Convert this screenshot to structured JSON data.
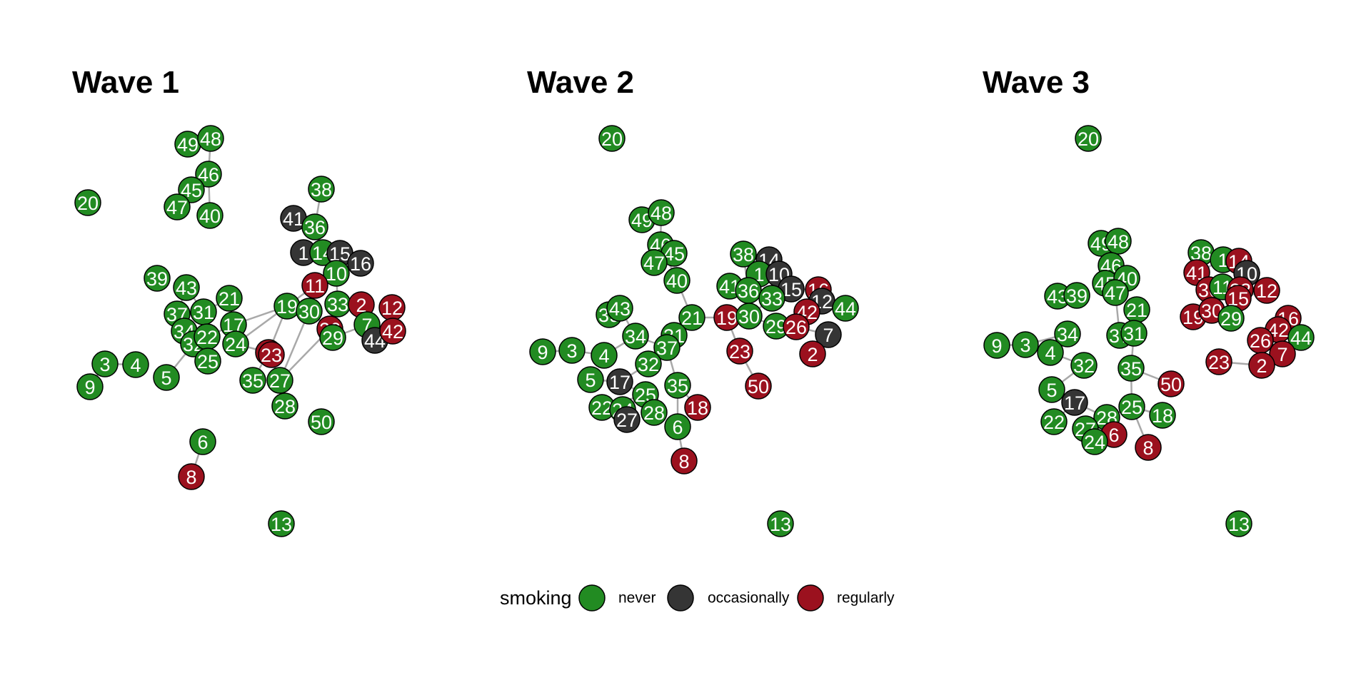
{
  "colors": {
    "never": "#228B22",
    "occasionally": "#353535",
    "regularly": "#9B111E",
    "edge": "#A9A9A9"
  },
  "legend": {
    "title": "smoking",
    "items": [
      {
        "key": "never",
        "label": "never"
      },
      {
        "key": "occasionally",
        "label": "occasionally"
      },
      {
        "key": "regularly",
        "label": "regularly"
      }
    ]
  },
  "panels": [
    {
      "title": "Wave 1",
      "nodes": [
        {
          "id": "49",
          "g": "never"
        },
        {
          "id": "48",
          "g": "never"
        },
        {
          "id": "46",
          "g": "never"
        },
        {
          "id": "45",
          "g": "never"
        },
        {
          "id": "47",
          "g": "never"
        },
        {
          "id": "40",
          "g": "never"
        },
        {
          "id": "20",
          "g": "never"
        },
        {
          "id": "38",
          "g": "never"
        },
        {
          "id": "41",
          "g": "occasionally"
        },
        {
          "id": "36",
          "g": "never"
        },
        {
          "id": "1",
          "g": "occasionally"
        },
        {
          "id": "14",
          "g": "never"
        },
        {
          "id": "15",
          "g": "occasionally"
        },
        {
          "id": "16",
          "g": "occasionally"
        },
        {
          "id": "10",
          "g": "never"
        },
        {
          "id": "11",
          "g": "regularly"
        },
        {
          "id": "39",
          "g": "never"
        },
        {
          "id": "43",
          "g": "never"
        },
        {
          "id": "21",
          "g": "never"
        },
        {
          "id": "37",
          "g": "never"
        },
        {
          "id": "31",
          "g": "never"
        },
        {
          "id": "17",
          "g": "never"
        },
        {
          "id": "34",
          "g": "never"
        },
        {
          "id": "32",
          "g": "never"
        },
        {
          "id": "22",
          "g": "never"
        },
        {
          "id": "24",
          "g": "never"
        },
        {
          "id": "25",
          "g": "never"
        },
        {
          "id": "19",
          "g": "never"
        },
        {
          "id": "30",
          "g": "never"
        },
        {
          "id": "33",
          "g": "never"
        },
        {
          "id": "2",
          "g": "regularly"
        },
        {
          "id": "12",
          "g": "regularly"
        },
        {
          "id": "26",
          "g": "regularly"
        },
        {
          "id": "29",
          "g": "never"
        },
        {
          "id": "7",
          "g": "never"
        },
        {
          "id": "44",
          "g": "occasionally"
        },
        {
          "id": "42",
          "g": "regularly"
        },
        {
          "id": "18",
          "g": "regularly"
        },
        {
          "id": "23",
          "g": "regularly"
        },
        {
          "id": "3",
          "g": "never"
        },
        {
          "id": "4",
          "g": "never"
        },
        {
          "id": "9",
          "g": "never"
        },
        {
          "id": "5",
          "g": "never"
        },
        {
          "id": "35",
          "g": "never"
        },
        {
          "id": "27",
          "g": "never"
        },
        {
          "id": "28",
          "g": "never"
        },
        {
          "id": "50",
          "g": "never"
        },
        {
          "id": "6",
          "g": "never"
        },
        {
          "id": "8",
          "g": "regularly"
        },
        {
          "id": "13",
          "g": "never"
        }
      ],
      "edges": [
        [
          "49",
          "48"
        ],
        [
          "48",
          "46"
        ],
        [
          "46",
          "45"
        ],
        [
          "45",
          "47"
        ],
        [
          "46",
          "40"
        ],
        [
          "38",
          "36"
        ],
        [
          "41",
          "36"
        ],
        [
          "36",
          "14"
        ],
        [
          "1",
          "14"
        ],
        [
          "14",
          "15"
        ],
        [
          "15",
          "16"
        ],
        [
          "14",
          "10"
        ],
        [
          "10",
          "11"
        ],
        [
          "11",
          "19"
        ],
        [
          "10",
          "33"
        ],
        [
          "33",
          "2"
        ],
        [
          "2",
          "7"
        ],
        [
          "7",
          "44"
        ],
        [
          "44",
          "42"
        ],
        [
          "12",
          "42"
        ],
        [
          "30",
          "26"
        ],
        [
          "26",
          "29"
        ],
        [
          "29",
          "7"
        ],
        [
          "33",
          "26"
        ],
        [
          "19",
          "30"
        ],
        [
          "19",
          "17"
        ],
        [
          "17",
          "24"
        ],
        [
          "21",
          "17"
        ],
        [
          "21",
          "31"
        ],
        [
          "31",
          "37"
        ],
        [
          "37",
          "34"
        ],
        [
          "34",
          "22"
        ],
        [
          "22",
          "32"
        ],
        [
          "32",
          "25"
        ],
        [
          "43",
          "31"
        ],
        [
          "43",
          "37"
        ],
        [
          "24",
          "18"
        ],
        [
          "19",
          "18"
        ],
        [
          "18",
          "35"
        ],
        [
          "30",
          "27"
        ],
        [
          "26",
          "27"
        ],
        [
          "27",
          "28"
        ],
        [
          "27",
          "18"
        ],
        [
          "3",
          "4"
        ],
        [
          "3",
          "9"
        ],
        [
          "32",
          "5"
        ],
        [
          "6",
          "8"
        ],
        [
          "17",
          "22"
        ],
        [
          "19",
          "24"
        ]
      ]
    },
    {
      "title": "Wave 2",
      "nodes": [
        {
          "id": "20",
          "g": "never"
        },
        {
          "id": "49",
          "g": "never"
        },
        {
          "id": "48",
          "g": "never"
        },
        {
          "id": "46",
          "g": "never"
        },
        {
          "id": "45",
          "g": "never"
        },
        {
          "id": "47",
          "g": "never"
        },
        {
          "id": "40",
          "g": "never"
        },
        {
          "id": "38",
          "g": "never"
        },
        {
          "id": "14",
          "g": "occasionally"
        },
        {
          "id": "1",
          "g": "never"
        },
        {
          "id": "10",
          "g": "occasionally"
        },
        {
          "id": "41",
          "g": "never"
        },
        {
          "id": "36",
          "g": "never"
        },
        {
          "id": "15",
          "g": "occasionally"
        },
        {
          "id": "16",
          "g": "regularly"
        },
        {
          "id": "33",
          "g": "never"
        },
        {
          "id": "12",
          "g": "occasionally"
        },
        {
          "id": "42",
          "g": "regularly"
        },
        {
          "id": "44",
          "g": "never"
        },
        {
          "id": "19",
          "g": "regularly"
        },
        {
          "id": "30",
          "g": "never"
        },
        {
          "id": "29",
          "g": "never"
        },
        {
          "id": "26",
          "g": "regularly"
        },
        {
          "id": "7",
          "g": "occasionally"
        },
        {
          "id": "2",
          "g": "regularly"
        },
        {
          "id": "23",
          "g": "regularly"
        },
        {
          "id": "50",
          "g": "regularly"
        },
        {
          "id": "21",
          "g": "never"
        },
        {
          "id": "39",
          "g": "never"
        },
        {
          "id": "43",
          "g": "never"
        },
        {
          "id": "34",
          "g": "never"
        },
        {
          "id": "31",
          "g": "never"
        },
        {
          "id": "37",
          "g": "never"
        },
        {
          "id": "9",
          "g": "never"
        },
        {
          "id": "3",
          "g": "never"
        },
        {
          "id": "4",
          "g": "never"
        },
        {
          "id": "32",
          "g": "never"
        },
        {
          "id": "5",
          "g": "never"
        },
        {
          "id": "17",
          "g": "occasionally"
        },
        {
          "id": "25",
          "g": "never"
        },
        {
          "id": "35",
          "g": "never"
        },
        {
          "id": "22",
          "g": "never"
        },
        {
          "id": "24",
          "g": "never"
        },
        {
          "id": "27",
          "g": "occasionally"
        },
        {
          "id": "28",
          "g": "never"
        },
        {
          "id": "18",
          "g": "regularly"
        },
        {
          "id": "6",
          "g": "never"
        },
        {
          "id": "8",
          "g": "regularly"
        },
        {
          "id": "13",
          "g": "never"
        }
      ],
      "edges": [
        [
          "49",
          "48"
        ],
        [
          "48",
          "46"
        ],
        [
          "46",
          "45"
        ],
        [
          "45",
          "47"
        ],
        [
          "46",
          "40"
        ],
        [
          "40",
          "21"
        ],
        [
          "21",
          "19"
        ],
        [
          "21",
          "31"
        ],
        [
          "31",
          "37"
        ],
        [
          "37",
          "34"
        ],
        [
          "34",
          "43"
        ],
        [
          "39",
          "43"
        ],
        [
          "34",
          "4"
        ],
        [
          "9",
          "3"
        ],
        [
          "3",
          "4"
        ],
        [
          "37",
          "32"
        ],
        [
          "32",
          "17"
        ],
        [
          "17",
          "5"
        ],
        [
          "17",
          "25"
        ],
        [
          "25",
          "22"
        ],
        [
          "25",
          "24"
        ],
        [
          "24",
          "27"
        ],
        [
          "25",
          "28"
        ],
        [
          "37",
          "35"
        ],
        [
          "35",
          "6"
        ],
        [
          "35",
          "18"
        ],
        [
          "6",
          "8"
        ],
        [
          "19",
          "23"
        ],
        [
          "23",
          "50"
        ],
        [
          "19",
          "30"
        ],
        [
          "38",
          "36"
        ],
        [
          "36",
          "41"
        ],
        [
          "36",
          "1"
        ],
        [
          "1",
          "14"
        ],
        [
          "14",
          "10"
        ],
        [
          "10",
          "15"
        ],
        [
          "15",
          "16"
        ],
        [
          "16",
          "42"
        ],
        [
          "42",
          "26"
        ],
        [
          "26",
          "29"
        ],
        [
          "29",
          "30"
        ],
        [
          "33",
          "36"
        ],
        [
          "12",
          "42"
        ],
        [
          "44",
          "12"
        ],
        [
          "26",
          "7"
        ],
        [
          "7",
          "2"
        ],
        [
          "30",
          "33"
        ],
        [
          "22",
          "24"
        ]
      ]
    },
    {
      "title": "Wave 3",
      "nodes": [
        {
          "id": "20",
          "g": "never"
        },
        {
          "id": "49",
          "g": "never"
        },
        {
          "id": "48",
          "g": "never"
        },
        {
          "id": "46",
          "g": "never"
        },
        {
          "id": "45",
          "g": "never"
        },
        {
          "id": "40",
          "g": "never"
        },
        {
          "id": "47",
          "g": "never"
        },
        {
          "id": "43",
          "g": "never"
        },
        {
          "id": "39",
          "g": "never"
        },
        {
          "id": "21",
          "g": "never"
        },
        {
          "id": "37",
          "g": "never"
        },
        {
          "id": "31",
          "g": "never"
        },
        {
          "id": "35",
          "g": "never"
        },
        {
          "id": "50",
          "g": "regularly"
        },
        {
          "id": "9",
          "g": "never"
        },
        {
          "id": "3",
          "g": "never"
        },
        {
          "id": "34",
          "g": "never"
        },
        {
          "id": "4",
          "g": "never"
        },
        {
          "id": "32",
          "g": "never"
        },
        {
          "id": "5",
          "g": "never"
        },
        {
          "id": "17",
          "g": "occasionally"
        },
        {
          "id": "22",
          "g": "never"
        },
        {
          "id": "28",
          "g": "never"
        },
        {
          "id": "25",
          "g": "never"
        },
        {
          "id": "18",
          "g": "never"
        },
        {
          "id": "27",
          "g": "never"
        },
        {
          "id": "6",
          "g": "regularly"
        },
        {
          "id": "24",
          "g": "never"
        },
        {
          "id": "8",
          "g": "regularly"
        },
        {
          "id": "38",
          "g": "never"
        },
        {
          "id": "1",
          "g": "never"
        },
        {
          "id": "14",
          "g": "regularly"
        },
        {
          "id": "10",
          "g": "occasionally"
        },
        {
          "id": "41",
          "g": "regularly"
        },
        {
          "id": "36",
          "g": "regularly"
        },
        {
          "id": "11",
          "g": "never"
        },
        {
          "id": "33",
          "g": "regularly"
        },
        {
          "id": "15",
          "g": "regularly"
        },
        {
          "id": "12",
          "g": "regularly"
        },
        {
          "id": "19",
          "g": "regularly"
        },
        {
          "id": "30",
          "g": "regularly"
        },
        {
          "id": "29",
          "g": "never"
        },
        {
          "id": "16",
          "g": "regularly"
        },
        {
          "id": "42",
          "g": "regularly"
        },
        {
          "id": "26",
          "g": "regularly"
        },
        {
          "id": "44",
          "g": "never"
        },
        {
          "id": "7",
          "g": "regularly"
        },
        {
          "id": "23",
          "g": "regularly"
        },
        {
          "id": "2",
          "g": "regularly"
        },
        {
          "id": "13",
          "g": "never"
        }
      ],
      "edges": [
        [
          "49",
          "48"
        ],
        [
          "48",
          "46"
        ],
        [
          "46",
          "45"
        ],
        [
          "46",
          "40"
        ],
        [
          "45",
          "47"
        ],
        [
          "40",
          "47"
        ],
        [
          "43",
          "39"
        ],
        [
          "47",
          "37"
        ],
        [
          "37",
          "31"
        ],
        [
          "21",
          "31"
        ],
        [
          "31",
          "35"
        ],
        [
          "35",
          "50"
        ],
        [
          "35",
          "25"
        ],
        [
          "25",
          "18"
        ],
        [
          "25",
          "28"
        ],
        [
          "28",
          "27"
        ],
        [
          "27",
          "24"
        ],
        [
          "28",
          "6"
        ],
        [
          "25",
          "8"
        ],
        [
          "9",
          "3"
        ],
        [
          "3",
          "4"
        ],
        [
          "4",
          "34"
        ],
        [
          "3",
          "34"
        ],
        [
          "4",
          "32"
        ],
        [
          "32",
          "5"
        ],
        [
          "5",
          "17"
        ],
        [
          "17",
          "22"
        ],
        [
          "17",
          "28"
        ],
        [
          "38",
          "1"
        ],
        [
          "1",
          "14"
        ],
        [
          "14",
          "10"
        ],
        [
          "41",
          "36"
        ],
        [
          "36",
          "11"
        ],
        [
          "11",
          "33"
        ],
        [
          "33",
          "15"
        ],
        [
          "15",
          "12"
        ],
        [
          "41",
          "1"
        ],
        [
          "38",
          "41"
        ],
        [
          "19",
          "30"
        ],
        [
          "30",
          "29"
        ],
        [
          "29",
          "33"
        ],
        [
          "36",
          "30"
        ],
        [
          "16",
          "42"
        ],
        [
          "42",
          "26"
        ],
        [
          "26",
          "7"
        ],
        [
          "7",
          "44"
        ],
        [
          "42",
          "44"
        ],
        [
          "23",
          "2"
        ],
        [
          "2",
          "7"
        ]
      ]
    }
  ]
}
